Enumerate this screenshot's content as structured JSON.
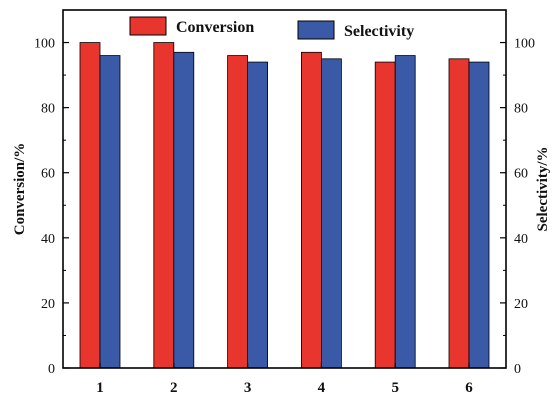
{
  "chart_data": {
    "type": "bar",
    "categories": [
      "1",
      "2",
      "3",
      "4",
      "5",
      "6"
    ],
    "series": [
      {
        "name": "Conversion",
        "values": [
          100,
          100,
          96,
          97,
          94,
          95
        ],
        "color": "#e8352e"
      },
      {
        "name": "Selectivity",
        "values": [
          96,
          97,
          94,
          95,
          96,
          94
        ],
        "color": "#3a5aa8"
      }
    ],
    "ylabel": "Conversion/%",
    "y2label": "Selectivity/%",
    "ylim": [
      0,
      110
    ],
    "y2lim": [
      0,
      110
    ],
    "yticks": [
      0,
      20,
      40,
      60,
      80,
      100
    ],
    "y2ticks": [
      0,
      20,
      40,
      60,
      80,
      100
    ],
    "grid": false,
    "legend_placement": "top-center"
  }
}
